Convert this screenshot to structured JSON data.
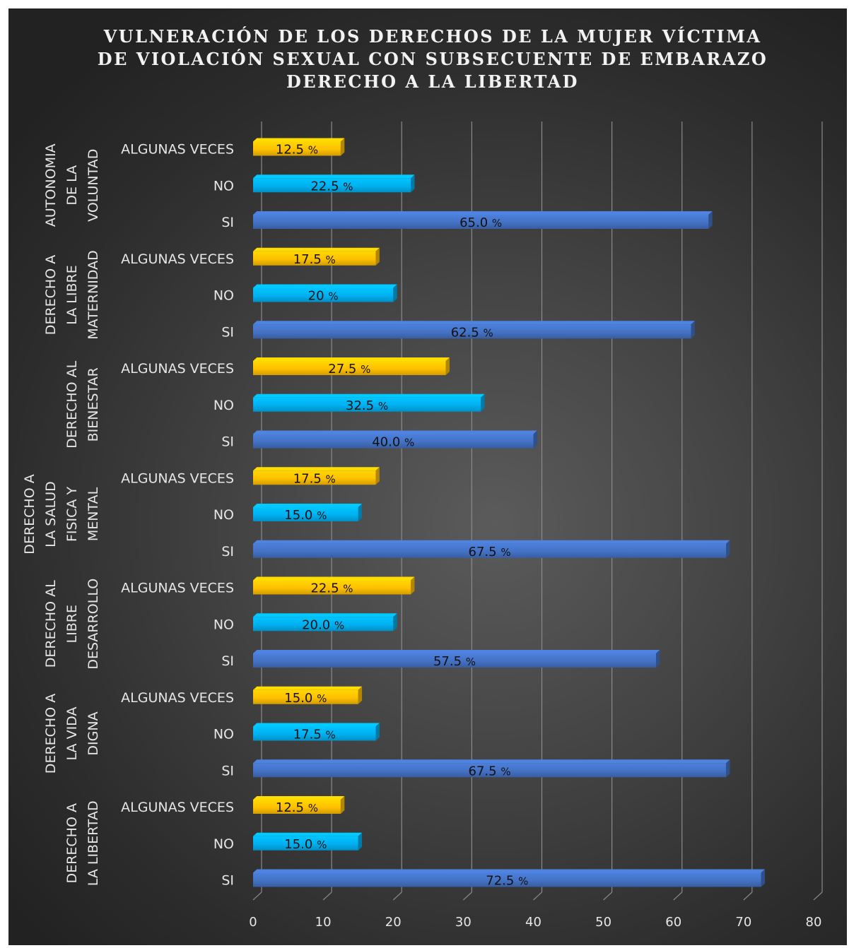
{
  "chart_data": {
    "type": "bar",
    "orientation": "horizontal",
    "title_lines": [
      "VULNERACIÓN DE LOS DERECHOS DE LA MUJER VÍCTIMA",
      "DE VIOLACIÓN SEXUAL CON SUBSECUENTE DE EMBARAZO",
      "DERECHO A LA LIBERTAD"
    ],
    "xlim": [
      0,
      80
    ],
    "x_ticks": [
      0,
      10,
      20,
      30,
      40,
      50,
      60,
      70,
      80
    ],
    "grid": "vertical",
    "colors": {
      "ALGUNAS VECES": "#ffc000",
      "NO": "#00b0f0",
      "SI": "#4472c4"
    },
    "groups": [
      {
        "label_lines": [
          "AUTONOMIA",
          "DE LA",
          "VOLUNTAD"
        ],
        "bars": [
          {
            "category": "ALGUNAS VECES",
            "value": 12.5,
            "label": "12.5 %"
          },
          {
            "category": "NO",
            "value": 22.5,
            "label": "22.5 %"
          },
          {
            "category": "SI",
            "value": 65.0,
            "label": "65.0 %"
          }
        ]
      },
      {
        "label_lines": [
          "DERECHO A",
          "LA LIBRE",
          "MATERNIDAD"
        ],
        "bars": [
          {
            "category": "ALGUNAS VECES",
            "value": 17.5,
            "label": "17.5 %"
          },
          {
            "category": "NO",
            "value": 20.0,
            "label": "20 %"
          },
          {
            "category": "SI",
            "value": 62.5,
            "label": "62.5 %"
          }
        ]
      },
      {
        "label_lines": [
          "DERECHO AL",
          "BIENESTAR"
        ],
        "bars": [
          {
            "category": "ALGUNAS VECES",
            "value": 27.5,
            "label": "27.5 %"
          },
          {
            "category": "NO",
            "value": 32.5,
            "label": "32.5 %"
          },
          {
            "category": "SI",
            "value": 40.0,
            "label": "40.0 %"
          }
        ]
      },
      {
        "label_lines": [
          "DERECHO A",
          "LA SALUD",
          "FISICA Y",
          "MENTAL"
        ],
        "bars": [
          {
            "category": "ALGUNAS VECES",
            "value": 17.5,
            "label": "17.5 %"
          },
          {
            "category": "NO",
            "value": 15.0,
            "label": "15.0 %"
          },
          {
            "category": "SI",
            "value": 67.5,
            "label": "67.5 %"
          }
        ]
      },
      {
        "label_lines": [
          "DERECHO AL",
          "LIBRE",
          "DESARROLLO"
        ],
        "bars": [
          {
            "category": "ALGUNAS VECES",
            "value": 22.5,
            "label": "22.5 %"
          },
          {
            "category": "NO",
            "value": 20.0,
            "label": "20.0  %"
          },
          {
            "category": "SI",
            "value": 57.5,
            "label": "57.5 %"
          }
        ]
      },
      {
        "label_lines": [
          "DERECHO A",
          "LA VIDA",
          "DIGNA"
        ],
        "bars": [
          {
            "category": "ALGUNAS VECES",
            "value": 15.0,
            "label": "15.0 %"
          },
          {
            "category": "NO",
            "value": 17.5,
            "label": "17.5 %"
          },
          {
            "category": "SI",
            "value": 67.5,
            "label": "67.5 %"
          }
        ]
      },
      {
        "label_lines": [
          "DERECHO A",
          "LA LIBERTAD"
        ],
        "bars": [
          {
            "category": "ALGUNAS VECES",
            "value": 12.5,
            "label": "12.5 %"
          },
          {
            "category": "NO",
            "value": 15.0,
            "label": "15.0 %"
          },
          {
            "category": "SI",
            "value": 72.5,
            "label": "72.5 %"
          }
        ]
      }
    ]
  }
}
